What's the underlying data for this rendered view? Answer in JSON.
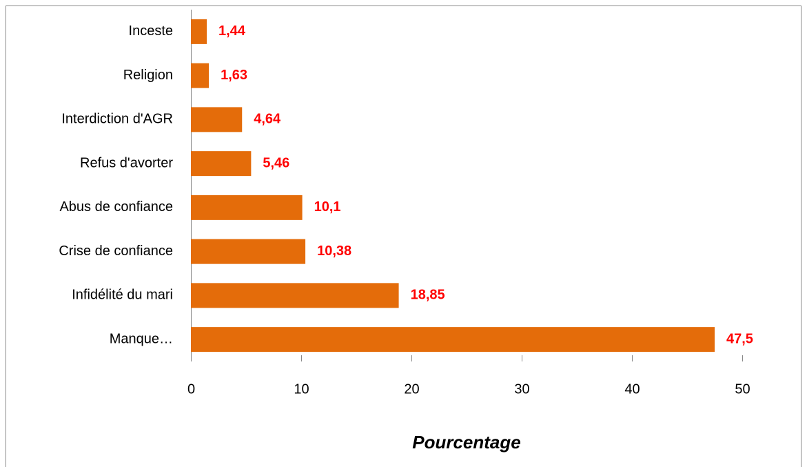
{
  "chart_data": {
    "type": "barh",
    "categories": [
      "Inceste",
      "Religion",
      "Interdiction d'AGR",
      "Refus d'avorter",
      "Abus de confiance",
      "Crise de confiance",
      "Infidélité du mari",
      "Manque…"
    ],
    "values": [
      1.44,
      1.63,
      4.64,
      5.46,
      10.1,
      10.38,
      18.85,
      47.5
    ],
    "value_labels": [
      "1,44",
      "1,63",
      "4,64",
      "5,46",
      "10,1",
      "10,38",
      "18,85",
      "47,5"
    ],
    "color": "#e46c0a",
    "label_color": "#ff0000",
    "xlabel": "Pourcentage",
    "xlim": [
      0,
      50
    ],
    "xticks": [
      0,
      10,
      20,
      30,
      40,
      50
    ]
  }
}
